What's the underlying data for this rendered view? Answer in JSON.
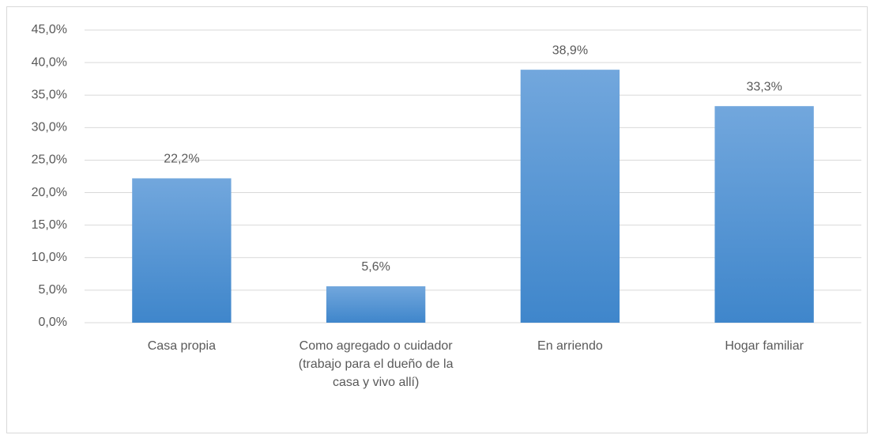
{
  "chart_data": {
    "type": "bar",
    "categories": [
      "Casa propia",
      "Como agregado o cuidador (trabajo para el dueño de la casa y vivo allí)",
      "En arriendo",
      "Hogar familiar"
    ],
    "values": [
      22.2,
      5.6,
      38.9,
      33.3
    ],
    "value_labels": [
      "22,2%",
      "5,6%",
      "38,9%",
      "33,3%"
    ],
    "color": "#5b9bd5",
    "ylim": [
      0,
      45
    ],
    "yticks": [
      {
        "value": 0,
        "label": "0,0%"
      },
      {
        "value": 5,
        "label": "5,0%"
      },
      {
        "value": 10,
        "label": "10,0%"
      },
      {
        "value": 15,
        "label": "15,0%"
      },
      {
        "value": 20,
        "label": "20,0%"
      },
      {
        "value": 25,
        "label": "25,0%"
      },
      {
        "value": 30,
        "label": "30,0%"
      },
      {
        "value": 35,
        "label": "35,0%"
      },
      {
        "value": 40,
        "label": "40,0%"
      },
      {
        "value": 45,
        "label": "45,0%"
      }
    ],
    "grid": true
  }
}
